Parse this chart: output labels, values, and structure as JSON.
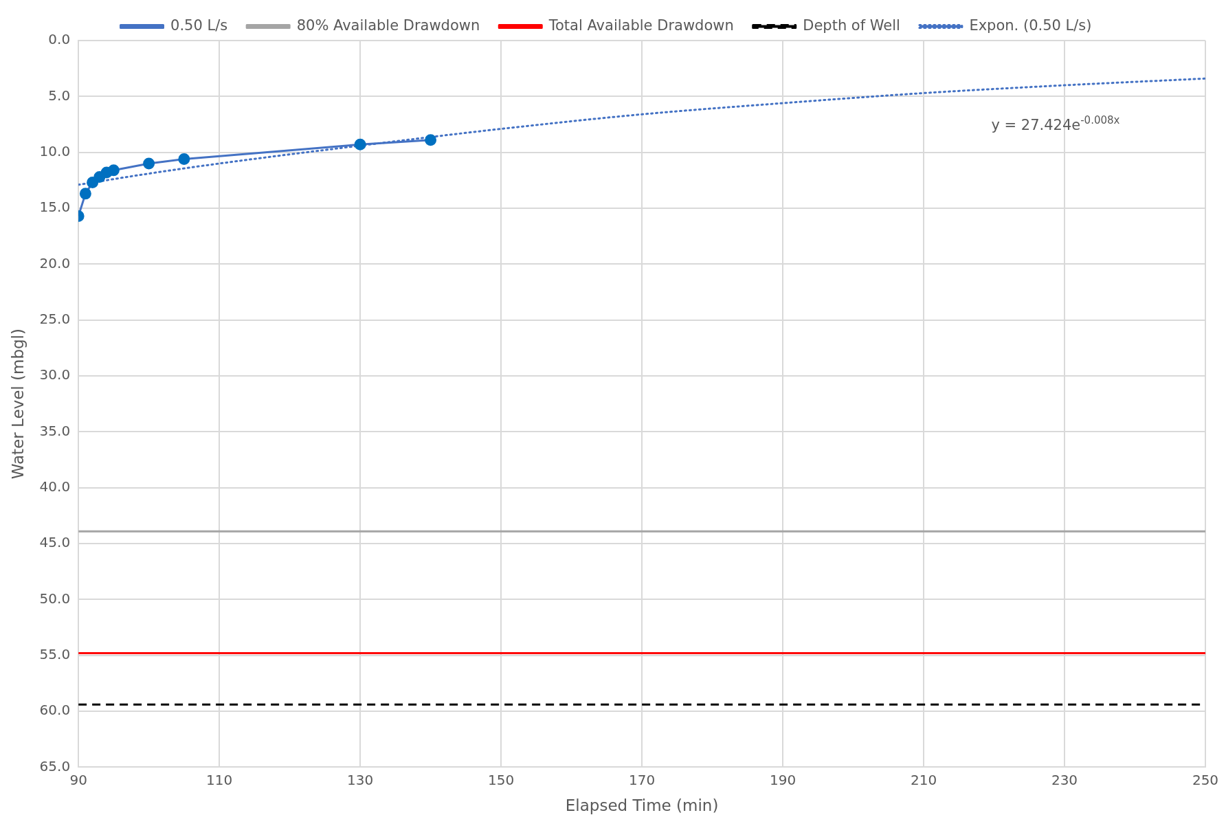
{
  "chart_data": {
    "type": "line",
    "xlabel": "Elapsed Time (min)",
    "ylabel": "Water Level (mbgl)",
    "xlim": [
      90,
      250
    ],
    "xticks": [
      90,
      110,
      130,
      150,
      170,
      190,
      210,
      230,
      250
    ],
    "ylim": [
      65,
      0
    ],
    "yticks": [
      {
        "value": 0,
        "label": "0.0"
      },
      {
        "value": 5,
        "label": "5.0"
      },
      {
        "value": 10,
        "label": "10.0"
      },
      {
        "value": 15,
        "label": "15.0"
      },
      {
        "value": 20,
        "label": "20.0"
      },
      {
        "value": 25,
        "label": "25.0"
      },
      {
        "value": 30,
        "label": "30.0"
      },
      {
        "value": 35,
        "label": "35.0"
      },
      {
        "value": 40,
        "label": "40.0"
      },
      {
        "value": 45,
        "label": "45.0"
      },
      {
        "value": 50,
        "label": "50.0"
      },
      {
        "value": 55,
        "label": "55.0"
      },
      {
        "value": 60,
        "label": "60.0"
      },
      {
        "value": 65,
        "label": "65.0"
      }
    ],
    "grid": true,
    "legend": "top",
    "series": [
      {
        "name": "0.50 L/s",
        "color": "#4472c4",
        "marker": "circle",
        "line_style": "solid",
        "x": [
          90,
          91,
          92,
          93,
          94,
          95,
          100,
          105,
          130,
          140
        ],
        "values": [
          15.7,
          13.7,
          12.7,
          12.2,
          11.8,
          11.6,
          11.0,
          10.6,
          9.3,
          8.9
        ]
      },
      {
        "name": "80% Available Drawdown",
        "color": "#a5a5a5",
        "marker": "none",
        "line_style": "solid",
        "x": [
          90,
          250
        ],
        "values": [
          43.9,
          43.9
        ]
      },
      {
        "name": "Total Available Drawdown",
        "color": "#ff0000",
        "marker": "none",
        "line_style": "solid",
        "x": [
          90,
          250
        ],
        "values": [
          54.8,
          54.8
        ]
      },
      {
        "name": "Depth of Well",
        "color": "#000000",
        "marker": "none",
        "line_style": "dashed",
        "x": [
          90,
          250
        ],
        "values": [
          59.4,
          59.4
        ]
      },
      {
        "name": "Expon. (0.50 L/s)",
        "color": "#4472c4",
        "marker": "none",
        "line_style": "dotted",
        "x": [
          90,
          100,
          110,
          130,
          150,
          170,
          190,
          210,
          230,
          250
        ],
        "values": [
          12.9,
          11.9,
          11.0,
          9.4,
          7.9,
          6.6,
          5.6,
          4.7,
          4.0,
          3.4
        ]
      }
    ],
    "annotations": [
      "y = 27.424e$^{-0.008x}$"
    ]
  }
}
